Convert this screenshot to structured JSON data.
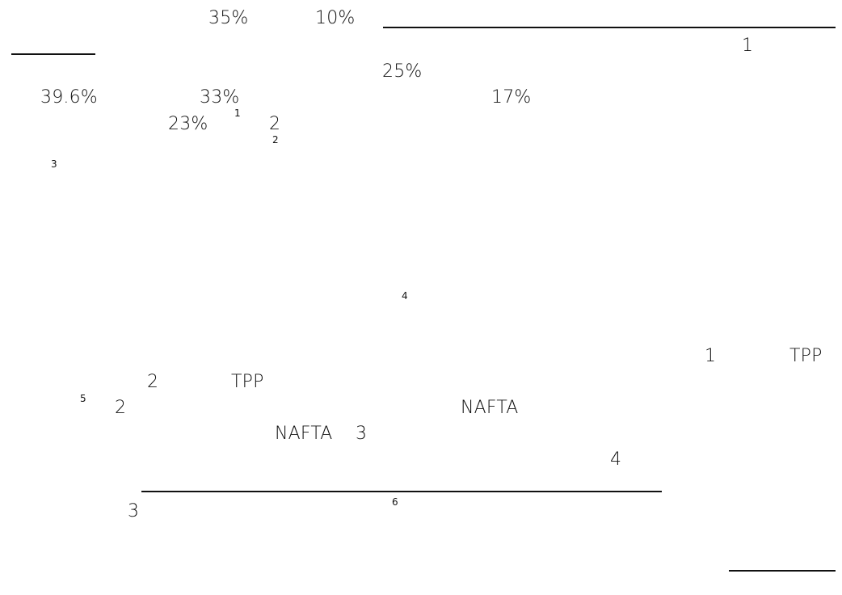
{
  "document": {
    "body_tokens": [
      "35%",
      "10%",
      "1",
      "25%",
      "39.6%",
      "33%",
      "17%",
      "23%",
      "2",
      "1",
      "TPP",
      "2",
      "TPP",
      "2",
      "NAFTA",
      "NAFTA",
      "3",
      "4",
      "3"
    ],
    "footnote_markers": [
      "1",
      "2",
      "3",
      "4",
      "5",
      "6"
    ]
  }
}
